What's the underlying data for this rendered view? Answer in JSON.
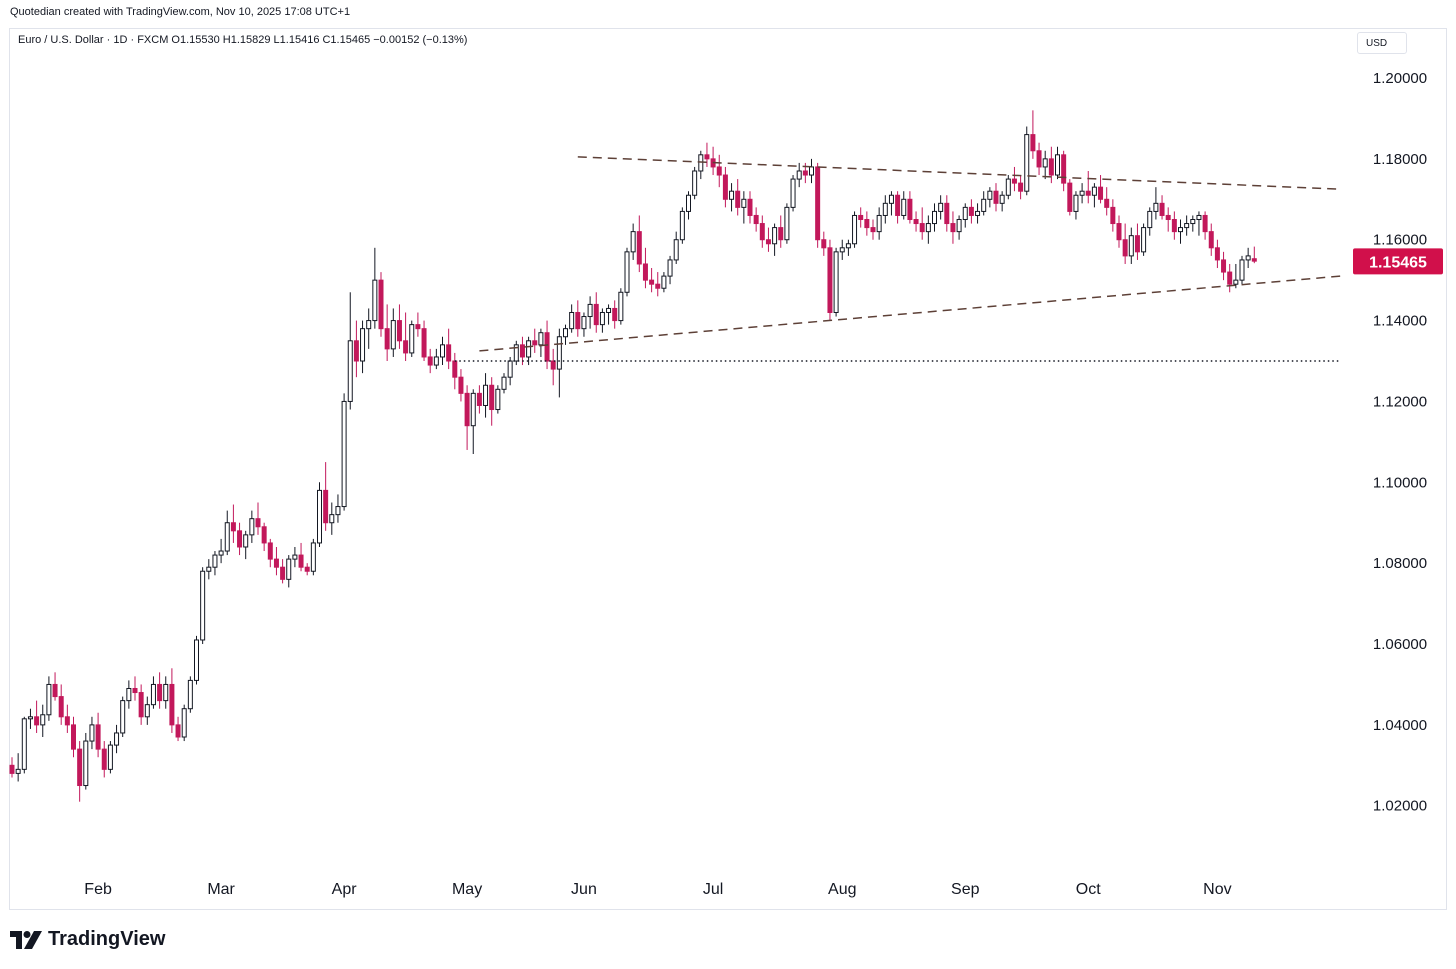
{
  "header": {
    "created_by": "Quotedian created with TradingView.com, Nov 10, 2025 17:08 UTC+1",
    "legend": "Euro / U.S. Dollar · 1D · FXCM  O1.15530  H1.15829  L1.15416  C1.15465  −0.00152 (−0.13%)"
  },
  "currency_label": "USD",
  "brand": {
    "name": "TradingView",
    "icon": "tradingview-logo-icon"
  },
  "colors": {
    "up": "#ffffff",
    "down": "#c2185b",
    "outline": "#131722",
    "price_tag": "#d1104b",
    "trendline": "#5d4037"
  },
  "chart_data": {
    "type": "candlestick",
    "symbol": "Euro / U.S. Dollar",
    "interval": "1D",
    "ylim": [
      1.0,
      1.205
    ],
    "y_ticks": [
      "1.20000",
      "1.18000",
      "1.16000",
      "1.14000",
      "1.12000",
      "1.10000",
      "1.08000",
      "1.06000",
      "1.04000",
      "1.02000"
    ],
    "x_ticks": [
      "Feb",
      "Mar",
      "Apr",
      "May",
      "Jun",
      "Jul",
      "Aug",
      "Sep",
      "Oct",
      "Nov"
    ],
    "x_tick_index": [
      14,
      34,
      54,
      74,
      93,
      114,
      135,
      155,
      175,
      196
    ],
    "current_price": "1.15465",
    "candles": [
      [
        1.03,
        1.032,
        1.027,
        1.028
      ],
      [
        1.028,
        1.033,
        1.026,
        1.029
      ],
      [
        1.029,
        1.042,
        1.028,
        1.0415
      ],
      [
        1.0415,
        1.044,
        1.039,
        1.042
      ],
      [
        1.042,
        1.046,
        1.038,
        1.04
      ],
      [
        1.04,
        1.045,
        1.037,
        1.0425
      ],
      [
        1.0425,
        1.052,
        1.041,
        1.05
      ],
      [
        1.05,
        1.053,
        1.046,
        1.047
      ],
      [
        1.047,
        1.05,
        1.04,
        1.042
      ],
      [
        1.042,
        1.045,
        1.038,
        1.04
      ],
      [
        1.04,
        1.042,
        1.032,
        1.034
      ],
      [
        1.034,
        1.036,
        1.021,
        1.025
      ],
      [
        1.025,
        1.038,
        1.024,
        1.036
      ],
      [
        1.036,
        1.042,
        1.034,
        1.04
      ],
      [
        1.04,
        1.043,
        1.032,
        1.034
      ],
      [
        1.034,
        1.036,
        1.027,
        1.029
      ],
      [
        1.029,
        1.036,
        1.028,
        1.035
      ],
      [
        1.035,
        1.04,
        1.033,
        1.038
      ],
      [
        1.038,
        1.047,
        1.037,
        1.046
      ],
      [
        1.046,
        1.051,
        1.044,
        1.049
      ],
      [
        1.049,
        1.052,
        1.046,
        1.048
      ],
      [
        1.048,
        1.05,
        1.04,
        1.042
      ],
      [
        1.042,
        1.047,
        1.04,
        1.045
      ],
      [
        1.045,
        1.052,
        1.044,
        1.05
      ],
      [
        1.05,
        1.053,
        1.044,
        1.046
      ],
      [
        1.046,
        1.052,
        1.044,
        1.05
      ],
      [
        1.05,
        1.054,
        1.038,
        1.04
      ],
      [
        1.04,
        1.042,
        1.036,
        1.037
      ],
      [
        1.037,
        1.045,
        1.036,
        1.044
      ],
      [
        1.044,
        1.052,
        1.043,
        1.051
      ],
      [
        1.051,
        1.062,
        1.05,
        1.061
      ],
      [
        1.061,
        1.079,
        1.06,
        1.078
      ],
      [
        1.078,
        1.081,
        1.076,
        1.079
      ],
      [
        1.079,
        1.083,
        1.077,
        1.082
      ],
      [
        1.082,
        1.086,
        1.08,
        1.083
      ],
      [
        1.083,
        1.093,
        1.082,
        1.09
      ],
      [
        1.09,
        1.0945,
        1.085,
        1.088
      ],
      [
        1.088,
        1.09,
        1.082,
        1.084
      ],
      [
        1.084,
        1.088,
        1.081,
        1.087
      ],
      [
        1.087,
        1.093,
        1.085,
        1.091
      ],
      [
        1.091,
        1.095,
        1.087,
        1.089
      ],
      [
        1.089,
        1.09,
        1.083,
        1.085
      ],
      [
        1.085,
        1.086,
        1.079,
        1.081
      ],
      [
        1.081,
        1.084,
        1.077,
        1.079
      ],
      [
        1.079,
        1.081,
        1.075,
        1.076
      ],
      [
        1.076,
        1.082,
        1.074,
        1.081
      ],
      [
        1.081,
        1.084,
        1.079,
        1.082
      ],
      [
        1.082,
        1.085,
        1.078,
        1.079
      ],
      [
        1.079,
        1.08,
        1.077,
        1.078
      ],
      [
        1.078,
        1.086,
        1.077,
        1.085
      ],
      [
        1.085,
        1.1,
        1.084,
        1.098
      ],
      [
        1.098,
        1.105,
        1.088,
        1.09
      ],
      [
        1.09,
        1.095,
        1.087,
        1.092
      ],
      [
        1.092,
        1.097,
        1.09,
        1.094
      ],
      [
        1.094,
        1.122,
        1.093,
        1.12
      ],
      [
        1.12,
        1.147,
        1.118,
        1.135
      ],
      [
        1.135,
        1.14,
        1.126,
        1.13
      ],
      [
        1.13,
        1.14,
        1.127,
        1.138
      ],
      [
        1.138,
        1.143,
        1.133,
        1.14
      ],
      [
        1.14,
        1.158,
        1.138,
        1.15
      ],
      [
        1.15,
        1.152,
        1.136,
        1.138
      ],
      [
        1.138,
        1.144,
        1.13,
        1.133
      ],
      [
        1.133,
        1.143,
        1.131,
        1.14
      ],
      [
        1.14,
        1.144,
        1.133,
        1.135
      ],
      [
        1.135,
        1.142,
        1.13,
        1.132
      ],
      [
        1.132,
        1.14,
        1.131,
        1.139
      ],
      [
        1.139,
        1.142,
        1.136,
        1.138
      ],
      [
        1.138,
        1.14,
        1.13,
        1.131
      ],
      [
        1.131,
        1.133,
        1.127,
        1.129
      ],
      [
        1.129,
        1.133,
        1.128,
        1.131
      ],
      [
        1.131,
        1.136,
        1.129,
        1.134
      ],
      [
        1.134,
        1.138,
        1.128,
        1.13
      ],
      [
        1.13,
        1.132,
        1.123,
        1.126
      ],
      [
        1.126,
        1.128,
        1.12,
        1.122
      ],
      [
        1.122,
        1.124,
        1.108,
        1.114
      ],
      [
        1.114,
        1.123,
        1.107,
        1.122
      ],
      [
        1.122,
        1.124,
        1.117,
        1.119
      ],
      [
        1.119,
        1.127,
        1.116,
        1.124
      ],
      [
        1.124,
        1.126,
        1.114,
        1.118
      ],
      [
        1.118,
        1.124,
        1.117,
        1.123
      ],
      [
        1.123,
        1.127,
        1.122,
        1.126
      ],
      [
        1.126,
        1.131,
        1.124,
        1.13
      ],
      [
        1.13,
        1.135,
        1.129,
        1.134
      ],
      [
        1.134,
        1.136,
        1.129,
        1.131
      ],
      [
        1.131,
        1.136,
        1.129,
        1.135
      ],
      [
        1.135,
        1.138,
        1.132,
        1.134
      ],
      [
        1.134,
        1.138,
        1.131,
        1.137
      ],
      [
        1.137,
        1.14,
        1.128,
        1.13
      ],
      [
        1.13,
        1.133,
        1.124,
        1.128
      ],
      [
        1.128,
        1.138,
        1.121,
        1.136
      ],
      [
        1.136,
        1.139,
        1.134,
        1.138
      ],
      [
        1.138,
        1.144,
        1.137,
        1.142
      ],
      [
        1.142,
        1.145,
        1.136,
        1.138
      ],
      [
        1.138,
        1.142,
        1.136,
        1.141
      ],
      [
        1.141,
        1.146,
        1.138,
        1.144
      ],
      [
        1.144,
        1.147,
        1.137,
        1.139
      ],
      [
        1.139,
        1.143,
        1.137,
        1.142
      ],
      [
        1.142,
        1.144,
        1.139,
        1.143
      ],
      [
        1.143,
        1.145,
        1.138,
        1.14
      ],
      [
        1.14,
        1.148,
        1.139,
        1.147
      ],
      [
        1.147,
        1.158,
        1.146,
        1.157
      ],
      [
        1.157,
        1.164,
        1.155,
        1.162
      ],
      [
        1.162,
        1.166,
        1.152,
        1.154
      ],
      [
        1.154,
        1.158,
        1.148,
        1.15
      ],
      [
        1.15,
        1.153,
        1.147,
        1.149
      ],
      [
        1.149,
        1.152,
        1.146,
        1.148
      ],
      [
        1.148,
        1.152,
        1.147,
        1.151
      ],
      [
        1.151,
        1.156,
        1.149,
        1.155
      ],
      [
        1.155,
        1.162,
        1.154,
        1.16
      ],
      [
        1.16,
        1.168,
        1.159,
        1.167
      ],
      [
        1.167,
        1.172,
        1.165,
        1.171
      ],
      [
        1.171,
        1.178,
        1.17,
        1.177
      ],
      [
        1.177,
        1.182,
        1.175,
        1.181
      ],
      [
        1.181,
        1.184,
        1.178,
        1.18
      ],
      [
        1.18,
        1.183,
        1.176,
        1.178
      ],
      [
        1.178,
        1.181,
        1.173,
        1.176
      ],
      [
        1.176,
        1.178,
        1.168,
        1.17
      ],
      [
        1.17,
        1.174,
        1.167,
        1.172
      ],
      [
        1.172,
        1.175,
        1.166,
        1.168
      ],
      [
        1.168,
        1.172,
        1.164,
        1.17
      ],
      [
        1.17,
        1.172,
        1.164,
        1.166
      ],
      [
        1.166,
        1.168,
        1.162,
        1.164
      ],
      [
        1.164,
        1.166,
        1.158,
        1.16
      ],
      [
        1.16,
        1.163,
        1.157,
        1.159
      ],
      [
        1.159,
        1.164,
        1.156,
        1.163
      ],
      [
        1.163,
        1.166,
        1.158,
        1.16
      ],
      [
        1.16,
        1.169,
        1.159,
        1.168
      ],
      [
        1.168,
        1.176,
        1.167,
        1.175
      ],
      [
        1.175,
        1.179,
        1.173,
        1.177
      ],
      [
        1.177,
        1.179,
        1.174,
        1.176
      ],
      [
        1.176,
        1.18,
        1.174,
        1.178
      ],
      [
        1.178,
        1.179,
        1.158,
        1.16
      ],
      [
        1.16,
        1.162,
        1.156,
        1.158
      ],
      [
        1.158,
        1.16,
        1.14,
        1.142
      ],
      [
        1.142,
        1.158,
        1.141,
        1.157
      ],
      [
        1.157,
        1.16,
        1.155,
        1.158
      ],
      [
        1.158,
        1.16,
        1.156,
        1.159
      ],
      [
        1.159,
        1.167,
        1.158,
        1.166
      ],
      [
        1.166,
        1.168,
        1.163,
        1.165
      ],
      [
        1.165,
        1.167,
        1.161,
        1.163
      ],
      [
        1.163,
        1.165,
        1.16,
        1.162
      ],
      [
        1.162,
        1.168,
        1.16,
        1.166
      ],
      [
        1.166,
        1.171,
        1.164,
        1.169
      ],
      [
        1.169,
        1.172,
        1.166,
        1.171
      ],
      [
        1.171,
        1.172,
        1.164,
        1.166
      ],
      [
        1.166,
        1.172,
        1.165,
        1.17
      ],
      [
        1.17,
        1.172,
        1.164,
        1.165
      ],
      [
        1.165,
        1.167,
        1.162,
        1.164
      ],
      [
        1.164,
        1.168,
        1.16,
        1.162
      ],
      [
        1.162,
        1.166,
        1.159,
        1.164
      ],
      [
        1.164,
        1.169,
        1.162,
        1.167
      ],
      [
        1.167,
        1.171,
        1.165,
        1.169
      ],
      [
        1.169,
        1.171,
        1.162,
        1.164
      ],
      [
        1.164,
        1.167,
        1.159,
        1.162
      ],
      [
        1.162,
        1.166,
        1.16,
        1.165
      ],
      [
        1.165,
        1.169,
        1.163,
        1.168
      ],
      [
        1.168,
        1.17,
        1.164,
        1.166
      ],
      [
        1.166,
        1.169,
        1.164,
        1.167
      ],
      [
        1.167,
        1.172,
        1.166,
        1.17
      ],
      [
        1.17,
        1.173,
        1.168,
        1.172
      ],
      [
        1.172,
        1.174,
        1.167,
        1.169
      ],
      [
        1.169,
        1.172,
        1.167,
        1.171
      ],
      [
        1.171,
        1.176,
        1.17,
        1.175
      ],
      [
        1.175,
        1.178,
        1.172,
        1.174
      ],
      [
        1.174,
        1.176,
        1.17,
        1.172
      ],
      [
        1.172,
        1.188,
        1.171,
        1.186
      ],
      [
        1.186,
        1.192,
        1.18,
        1.182
      ],
      [
        1.182,
        1.184,
        1.176,
        1.178
      ],
      [
        1.178,
        1.182,
        1.175,
        1.18
      ],
      [
        1.18,
        1.183,
        1.174,
        1.176
      ],
      [
        1.176,
        1.183,
        1.175,
        1.181
      ],
      [
        1.181,
        1.182,
        1.172,
        1.174
      ],
      [
        1.174,
        1.175,
        1.166,
        1.167
      ],
      [
        1.167,
        1.172,
        1.165,
        1.171
      ],
      [
        1.171,
        1.174,
        1.169,
        1.172
      ],
      [
        1.172,
        1.177,
        1.169,
        1.171
      ],
      [
        1.171,
        1.174,
        1.168,
        1.173
      ],
      [
        1.173,
        1.176,
        1.169,
        1.17
      ],
      [
        1.17,
        1.173,
        1.166,
        1.168
      ],
      [
        1.168,
        1.17,
        1.162,
        1.164
      ],
      [
        1.164,
        1.166,
        1.158,
        1.16
      ],
      [
        1.16,
        1.164,
        1.154,
        1.156
      ],
      [
        1.156,
        1.163,
        1.154,
        1.161
      ],
      [
        1.161,
        1.164,
        1.155,
        1.157
      ],
      [
        1.157,
        1.164,
        1.156,
        1.163
      ],
      [
        1.163,
        1.168,
        1.161,
        1.167
      ],
      [
        1.167,
        1.173,
        1.165,
        1.169
      ],
      [
        1.169,
        1.171,
        1.165,
        1.166
      ],
      [
        1.166,
        1.168,
        1.162,
        1.165
      ],
      [
        1.165,
        1.167,
        1.16,
        1.162
      ],
      [
        1.162,
        1.165,
        1.159,
        1.163
      ],
      [
        1.163,
        1.166,
        1.161,
        1.164
      ],
      [
        1.164,
        1.166,
        1.162,
        1.165
      ],
      [
        1.165,
        1.167,
        1.161,
        1.166
      ],
      [
        1.166,
        1.167,
        1.16,
        1.162
      ],
      [
        1.162,
        1.164,
        1.156,
        1.158
      ],
      [
        1.158,
        1.16,
        1.153,
        1.155
      ],
      [
        1.155,
        1.157,
        1.15,
        1.152
      ],
      [
        1.152,
        1.154,
        1.147,
        1.149
      ],
      [
        1.149,
        1.154,
        1.148,
        1.15
      ],
      [
        1.15,
        1.156,
        1.149,
        1.155
      ],
      [
        1.155,
        1.158,
        1.153,
        1.156
      ],
      [
        1.1553,
        1.1583,
        1.1542,
        1.1547
      ]
    ],
    "annotations": [
      {
        "type": "dashed_trendline",
        "name": "upper-resistance",
        "from": [
          92,
          1.1805
        ],
        "to": [
          216,
          1.1725
        ]
      },
      {
        "type": "dashed_trendline",
        "name": "lower-support",
        "from": [
          76,
          1.1325
        ],
        "to": [
          216,
          1.151
        ]
      },
      {
        "type": "dotted_horizontal",
        "name": "horizontal-support",
        "from": [
          72,
          1.13
        ],
        "to": [
          216,
          1.13
        ]
      }
    ]
  }
}
